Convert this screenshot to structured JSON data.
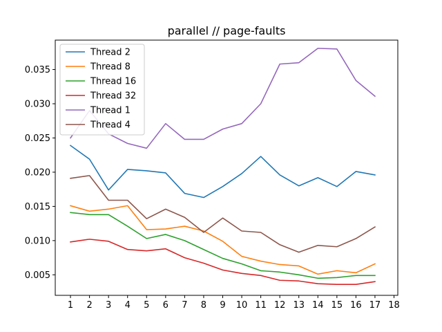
{
  "chart_data": {
    "type": "line",
    "title": "parallel // page-faults",
    "xlabel": "",
    "ylabel": "",
    "x": [
      1,
      2,
      3,
      4,
      5,
      6,
      7,
      8,
      9,
      10,
      11,
      12,
      13,
      14,
      15,
      16,
      17
    ],
    "x_ticks": [
      "1",
      "2",
      "3",
      "4",
      "5",
      "6",
      "7",
      "8",
      "9",
      "10",
      "11",
      "12",
      "13",
      "14",
      "15",
      "16",
      "17",
      "18"
    ],
    "y_ticks": [
      "0.005",
      "0.010",
      "0.015",
      "0.020",
      "0.025",
      "0.030",
      "0.035"
    ],
    "xlim": [
      0.2,
      18.2
    ],
    "ylim": [
      0.002,
      0.0393
    ],
    "grid": false,
    "legend": "top-left",
    "series": [
      {
        "name": "Thread 2",
        "color": "#1f77b4",
        "values": [
          0.0239,
          0.0219,
          0.0174,
          0.0204,
          0.0202,
          0.0199,
          0.0169,
          0.0163,
          0.0179,
          0.0198,
          0.0223,
          0.0196,
          0.018,
          0.0192,
          0.0179,
          0.0201,
          0.0196
        ]
      },
      {
        "name": "Thread 8",
        "color": "#ff7f0e",
        "values": [
          0.0151,
          0.0143,
          0.0146,
          0.0151,
          0.0116,
          0.0117,
          0.0121,
          0.0114,
          0.0099,
          0.0077,
          0.007,
          0.0065,
          0.0063,
          0.0051,
          0.0056,
          0.0053,
          0.0066
        ]
      },
      {
        "name": "Thread 16",
        "color": "#2ca02c",
        "values": [
          0.0141,
          0.0138,
          0.0138,
          0.0121,
          0.0103,
          0.0109,
          0.01,
          0.0087,
          0.0074,
          0.0066,
          0.0056,
          0.0054,
          0.005,
          0.0045,
          0.0046,
          0.0049,
          0.0049
        ]
      },
      {
        "name": "Thread 32",
        "color": "#d62728",
        "values": [
          0.0098,
          0.0102,
          0.0099,
          0.0087,
          0.0085,
          0.0088,
          0.0075,
          0.0067,
          0.0057,
          0.0052,
          0.0049,
          0.0042,
          0.0041,
          0.0037,
          0.0036,
          0.0036,
          0.004
        ]
      },
      {
        "name": "Thread 1",
        "color": "#9467bd",
        "values": [
          0.025,
          0.029,
          0.0256,
          0.0242,
          0.0235,
          0.0271,
          0.0248,
          0.0248,
          0.0263,
          0.0271,
          0.03,
          0.0358,
          0.036,
          0.0381,
          0.038,
          0.0334,
          0.0311
        ]
      },
      {
        "name": "Thread 4",
        "color": "#8c564b",
        "values": [
          0.0191,
          0.0195,
          0.0159,
          0.0159,
          0.0132,
          0.0146,
          0.0134,
          0.0112,
          0.0133,
          0.0114,
          0.0112,
          0.0094,
          0.0083,
          0.0093,
          0.0091,
          0.0103,
          0.012
        ]
      }
    ]
  }
}
